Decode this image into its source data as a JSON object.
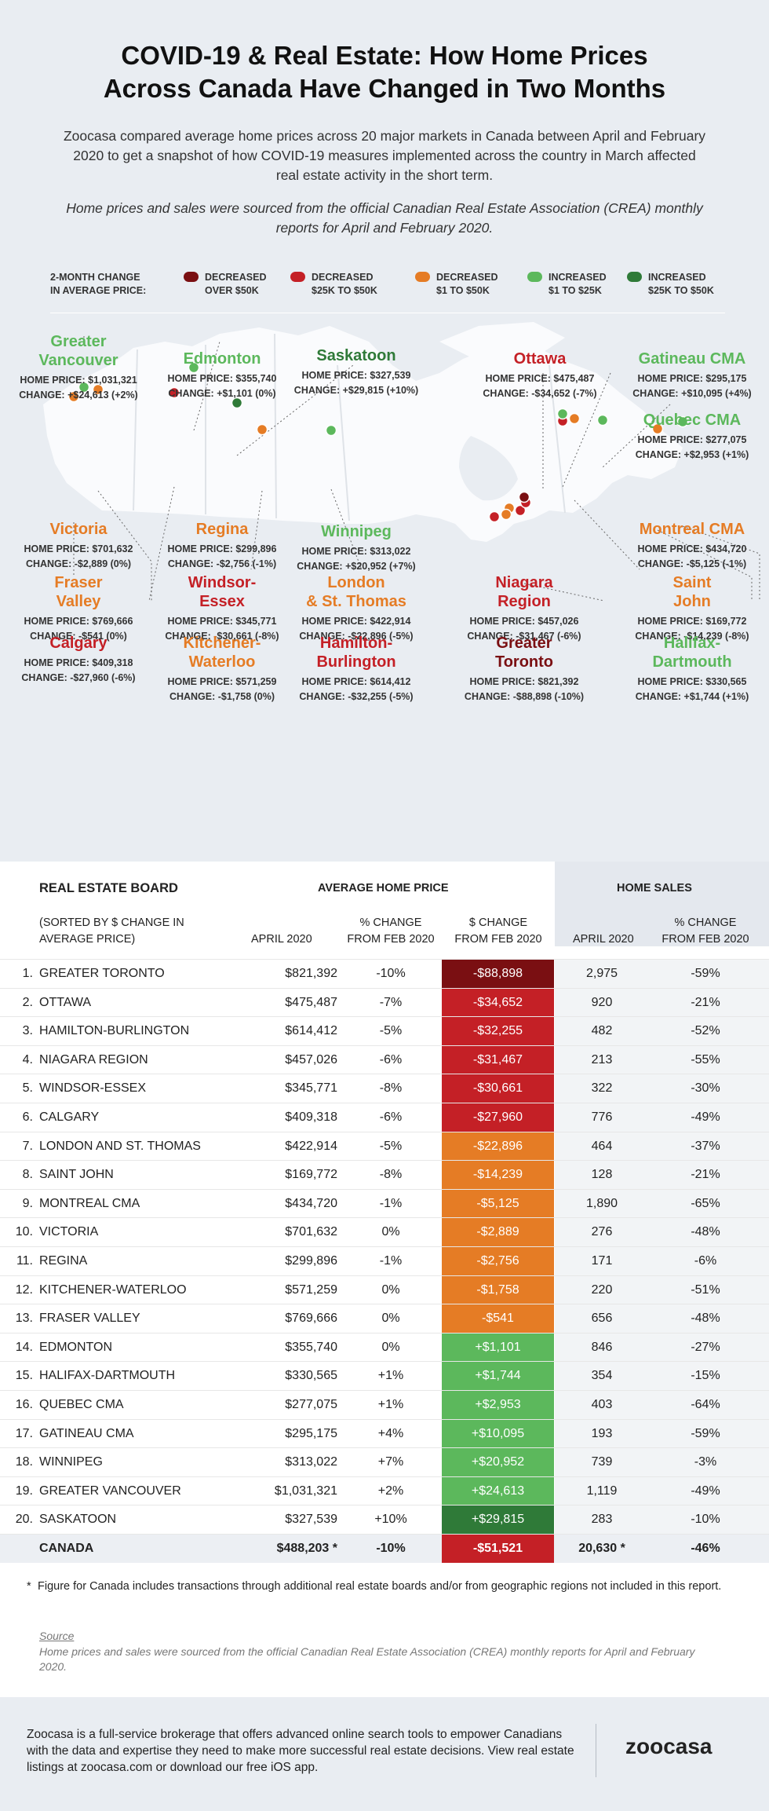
{
  "header": {
    "title_line1": "COVID-19 & Real Estate: How Home Prices",
    "title_line2": "Across Canada Have Changed in Two Months",
    "intro": "Zoocasa compared average home prices across 20 major markets in Canada between April and February 2020 to get a snapshot of how COVID-19 measures implemented across the country in March affected real estate activity in the short term.",
    "source_note": "Home prices and sales were sourced from the official Canadian Real Estate Association (CREA) monthly reports for April and February 2020."
  },
  "colors": {
    "dec_over_50k": "#7a0f12",
    "dec_25k_50k": "#c42026",
    "dec_1_50k": "#e57c25",
    "inc_1_25k": "#5cb85c",
    "inc_25k_50k": "#2f7a38",
    "bg": "#e9edf2"
  },
  "legend": {
    "label_line1": "2-MONTH CHANGE",
    "label_line2": "IN AVERAGE PRICE:",
    "items": [
      {
        "l1": "DECREASED",
        "l2": "OVER $50K",
        "color": "#7a0f12"
      },
      {
        "l1": "DECREASED",
        "l2": "$25K TO $50K",
        "color": "#c42026"
      },
      {
        "l1": "DECREASED",
        "l2": "$1 TO $50K",
        "color": "#e57c25"
      },
      {
        "l1": "INCREASED",
        "l2": "$1 TO $25K",
        "color": "#5cb85c"
      },
      {
        "l1": "INCREASED",
        "l2": "$25K TO $50K",
        "color": "#2f7a38"
      }
    ]
  },
  "cities": [
    {
      "name1": "Greater",
      "name2": "Vancouver",
      "price": "$1,031,321",
      "change": "+$24,613 (+2%)",
      "color": "#5cb85c"
    },
    {
      "name1": "Edmonton",
      "name2": "",
      "price": "$355,740",
      "change": "+$1,101 (0%)",
      "color": "#5cb85c"
    },
    {
      "name1": "Saskatoon",
      "name2": "",
      "price": "$327,539",
      "change": "+$29,815 (+10%)",
      "color": "#2f7a38"
    },
    {
      "name1": "Ottawa",
      "name2": "",
      "price": "$475,487",
      "change": "-$34,652 (-7%)",
      "color": "#c42026"
    },
    {
      "name1": "Gatineau CMA",
      "name2": "",
      "price": "$295,175",
      "change": "+$10,095 (+4%)",
      "color": "#5cb85c"
    },
    {
      "name1": "Quebec CMA",
      "name2": "",
      "price": "$277,075",
      "change": "+$2,953 (+1%)",
      "color": "#5cb85c"
    },
    {
      "name1": "Victoria",
      "name2": "",
      "price": "$701,632",
      "change": "-$2,889 (0%)",
      "color": "#e57c25"
    },
    {
      "name1": "Regina",
      "name2": "",
      "price": "$299,896",
      "change": "-$2,756 (-1%)",
      "color": "#e57c25"
    },
    {
      "name1": "Winnipeg",
      "name2": "",
      "price": "$313,022",
      "change": "+$20,952 (+7%)",
      "color": "#5cb85c"
    },
    {
      "name1": "Montreal CMA",
      "name2": "",
      "price": "$434,720",
      "change": "-$5,125 (-1%)",
      "color": "#e57c25"
    },
    {
      "name1": "Fraser",
      "name2": "Valley",
      "price": "$769,666",
      "change": "-$541 (0%)",
      "color": "#e57c25"
    },
    {
      "name1": "Windsor-",
      "name2": "Essex",
      "price": "$345,771",
      "change": "-$30,661 (-8%)",
      "color": "#c42026"
    },
    {
      "name1": "London",
      "name2": "& St. Thomas",
      "price": "$422,914",
      "change": "-$22,896 (-5%)",
      "color": "#e57c25"
    },
    {
      "name1": "Niagara",
      "name2": "Region",
      "price": "$457,026",
      "change": "-$31,467 (-6%)",
      "color": "#c42026"
    },
    {
      "name1": "Saint",
      "name2": "John",
      "price": "$169,772",
      "change": "-$14,239 (-8%)",
      "color": "#e57c25"
    },
    {
      "name1": "Calgary",
      "name2": "",
      "price": "$409,318",
      "change": "-$27,960 (-6%)",
      "color": "#c42026"
    },
    {
      "name1": "Kitchener-",
      "name2": "Waterloo",
      "price": "$571,259",
      "change": "-$1,758 (0%)",
      "color": "#e57c25"
    },
    {
      "name1": "Hamilton-",
      "name2": "Burlington",
      "price": "$614,412",
      "change": "-$32,255 (-5%)",
      "color": "#c42026"
    },
    {
      "name1": "Greater",
      "name2": "Toronto",
      "price": "$821,392",
      "change": "-$88,898 (-10%)",
      "color": "#7a0f12"
    },
    {
      "name1": "Halifax-",
      "name2": "Dartmouth",
      "price": "$330,565",
      "change": "+$1,744 (+1%)",
      "color": "#5cb85c"
    }
  ],
  "city_labels": {
    "price": "HOME PRICE: ",
    "change": "CHANGE: "
  },
  "table": {
    "h_board": "REAL ESTATE BOARD",
    "h_avg": "AVERAGE HOME PRICE",
    "h_sales": "HOME SALES",
    "h_sorted1": "(SORTED BY $ CHANGE IN",
    "h_sorted2": "AVERAGE PRICE)",
    "h_april": "APRIL 2020",
    "h_pct1": "% CHANGE",
    "h_pct2": "FROM FEB 2020",
    "h_dol1": "$ CHANGE",
    "h_dol2": "FROM FEB 2020",
    "h_s_april": "APRIL 2020",
    "h_s_pct1": "% CHANGE",
    "h_s_pct2": "FROM FEB 2020",
    "rows": [
      {
        "rank": "1.",
        "board": "GREATER TORONTO",
        "price": "$821,392",
        "pct": "-10%",
        "chg": "-$88,898",
        "sales": "2,975",
        "spct": "-59%",
        "color": "#7a0f12"
      },
      {
        "rank": "2.",
        "board": "OTTAWA",
        "price": "$475,487",
        "pct": "-7%",
        "chg": "-$34,652",
        "sales": "920",
        "spct": "-21%",
        "color": "#c42026"
      },
      {
        "rank": "3.",
        "board": "HAMILTON-BURLINGTON",
        "price": "$614,412",
        "pct": "-5%",
        "chg": "-$32,255",
        "sales": "482",
        "spct": "-52%",
        "color": "#c42026"
      },
      {
        "rank": "4.",
        "board": "NIAGARA REGION",
        "price": "$457,026",
        "pct": "-6%",
        "chg": "-$31,467",
        "sales": "213",
        "spct": "-55%",
        "color": "#c42026"
      },
      {
        "rank": "5.",
        "board": "WINDSOR-ESSEX",
        "price": "$345,771",
        "pct": "-8%",
        "chg": "-$30,661",
        "sales": "322",
        "spct": "-30%",
        "color": "#c42026"
      },
      {
        "rank": "6.",
        "board": "CALGARY",
        "price": "$409,318",
        "pct": "-6%",
        "chg": "-$27,960",
        "sales": "776",
        "spct": "-49%",
        "color": "#c42026"
      },
      {
        "rank": "7.",
        "board": "LONDON AND ST. THOMAS",
        "price": "$422,914",
        "pct": "-5%",
        "chg": "-$22,896",
        "sales": "464",
        "spct": "-37%",
        "color": "#e57c25"
      },
      {
        "rank": "8.",
        "board": "SAINT JOHN",
        "price": "$169,772",
        "pct": "-8%",
        "chg": "-$14,239",
        "sales": "128",
        "spct": "-21%",
        "color": "#e57c25"
      },
      {
        "rank": "9.",
        "board": "MONTREAL CMA",
        "price": "$434,720",
        "pct": "-1%",
        "chg": "-$5,125",
        "sales": "1,890",
        "spct": "-65%",
        "color": "#e57c25"
      },
      {
        "rank": "10.",
        "board": "VICTORIA",
        "price": "$701,632",
        "pct": "0%",
        "chg": "-$2,889",
        "sales": "276",
        "spct": "-48%",
        "color": "#e57c25"
      },
      {
        "rank": "11.",
        "board": "REGINA",
        "price": "$299,896",
        "pct": "-1%",
        "chg": "-$2,756",
        "sales": "171",
        "spct": "-6%",
        "color": "#e57c25"
      },
      {
        "rank": "12.",
        "board": "KITCHENER-WATERLOO",
        "price": "$571,259",
        "pct": "0%",
        "chg": "-$1,758",
        "sales": "220",
        "spct": "-51%",
        "color": "#e57c25"
      },
      {
        "rank": "13.",
        "board": "FRASER VALLEY",
        "price": "$769,666",
        "pct": "0%",
        "chg": "-$541",
        "sales": "656",
        "spct": "-48%",
        "color": "#e57c25"
      },
      {
        "rank": "14.",
        "board": "EDMONTON",
        "price": "$355,740",
        "pct": "0%",
        "chg": "+$1,101",
        "sales": "846",
        "spct": "-27%",
        "color": "#5cb85c"
      },
      {
        "rank": "15.",
        "board": "HALIFAX-DARTMOUTH",
        "price": "$330,565",
        "pct": "+1%",
        "chg": "+$1,744",
        "sales": "354",
        "spct": "-15%",
        "color": "#5cb85c"
      },
      {
        "rank": "16.",
        "board": "QUEBEC CMA",
        "price": "$277,075",
        "pct": "+1%",
        "chg": "+$2,953",
        "sales": "403",
        "spct": "-64%",
        "color": "#5cb85c"
      },
      {
        "rank": "17.",
        "board": "GATINEAU CMA",
        "price": "$295,175",
        "pct": "+4%",
        "chg": "+$10,095",
        "sales": "193",
        "spct": "-59%",
        "color": "#5cb85c"
      },
      {
        "rank": "18.",
        "board": "WINNIPEG",
        "price": "$313,022",
        "pct": "+7%",
        "chg": "+$20,952",
        "sales": "739",
        "spct": "-3%",
        "color": "#5cb85c"
      },
      {
        "rank": "19.",
        "board": "GREATER VANCOUVER",
        "price": "$1,031,321",
        "pct": "+2%",
        "chg": "+$24,613",
        "sales": "1,119",
        "spct": "-49%",
        "color": "#5cb85c"
      },
      {
        "rank": "20.",
        "board": "SASKATOON",
        "price": "$327,539",
        "pct": "+10%",
        "chg": "+$29,815",
        "sales": "283",
        "spct": "-10%",
        "color": "#2f7a38"
      }
    ],
    "canada": {
      "rank": "",
      "board": "CANADA",
      "price": "$488,203",
      "star": "*",
      "pct": "-10%",
      "chg": "-$51,521",
      "sales": "20,630",
      "sstar": "*",
      "spct": "-46%",
      "color": "#c42026"
    }
  },
  "chart_data": {
    "type": "table",
    "title": "COVID-19 & Real Estate: How Home Prices Across Canada Have Changed in Two Months",
    "columns": [
      "Real Estate Board",
      "April 2020 Avg Price",
      "% Change from Feb 2020",
      "$ Change from Feb 2020",
      "April 2020 Sales",
      "Sales % Change from Feb 2020"
    ],
    "categories": [
      "Greater Toronto",
      "Ottawa",
      "Hamilton-Burlington",
      "Niagara Region",
      "Windsor-Essex",
      "Calgary",
      "London and St. Thomas",
      "Saint John",
      "Montreal CMA",
      "Victoria",
      "Regina",
      "Kitchener-Waterloo",
      "Fraser Valley",
      "Edmonton",
      "Halifax-Dartmouth",
      "Quebec CMA",
      "Gatineau CMA",
      "Winnipeg",
      "Greater Vancouver",
      "Saskatoon",
      "Canada"
    ],
    "series": [
      {
        "name": "APRIL 2020",
        "values": [
          821392,
          475487,
          614412,
          457026,
          345771,
          409318,
          422914,
          169772,
          434720,
          701632,
          299896,
          571259,
          769666,
          355740,
          330565,
          277075,
          295175,
          313022,
          1031321,
          327539,
          488203
        ]
      },
      {
        "name": "% CHANGE FROM FEB 2020",
        "values": [
          -10,
          -7,
          -5,
          -6,
          -8,
          -6,
          -5,
          -8,
          -1,
          0,
          -1,
          0,
          0,
          0,
          1,
          1,
          4,
          7,
          2,
          10,
          -10
        ]
      },
      {
        "name": "$ CHANGE FROM FEB 2020",
        "values": [
          -88898,
          -34652,
          -32255,
          -31467,
          -30661,
          -27960,
          -22896,
          -14239,
          -5125,
          -2889,
          -2756,
          -1758,
          -541,
          1101,
          1744,
          2953,
          10095,
          20952,
          24613,
          29815,
          -51521
        ]
      },
      {
        "name": "HOME SALES APRIL 2020",
        "values": [
          2975,
          920,
          482,
          213,
          322,
          776,
          464,
          128,
          1890,
          276,
          171,
          220,
          656,
          846,
          354,
          403,
          193,
          739,
          1119,
          283,
          20630
        ]
      },
      {
        "name": "HOME SALES % CHANGE FROM FEB 2020",
        "values": [
          -59,
          -21,
          -52,
          -55,
          -30,
          -49,
          -37,
          -21,
          -65,
          -48,
          -6,
          -51,
          -48,
          -27,
          -15,
          -64,
          -59,
          -3,
          -49,
          -10,
          -46
        ]
      }
    ]
  },
  "footnote": {
    "star": "*",
    "text": "Figure for Canada includes transactions through additional real estate boards and/or from geographic regions not included in this report."
  },
  "source": {
    "label": "Source",
    "text": "Home prices and sales were sourced from the official Canadian Real Estate Association (CREA) monthly reports for April and February 2020."
  },
  "footer": {
    "text": "Zoocasa is a full-service brokerage that offers advanced online search tools to empower Canadians with the data and expertise they need to make more successful real estate decisions. View real estate listings at zoocasa.com or download our free iOS app.",
    "logo": "zoocasa"
  }
}
